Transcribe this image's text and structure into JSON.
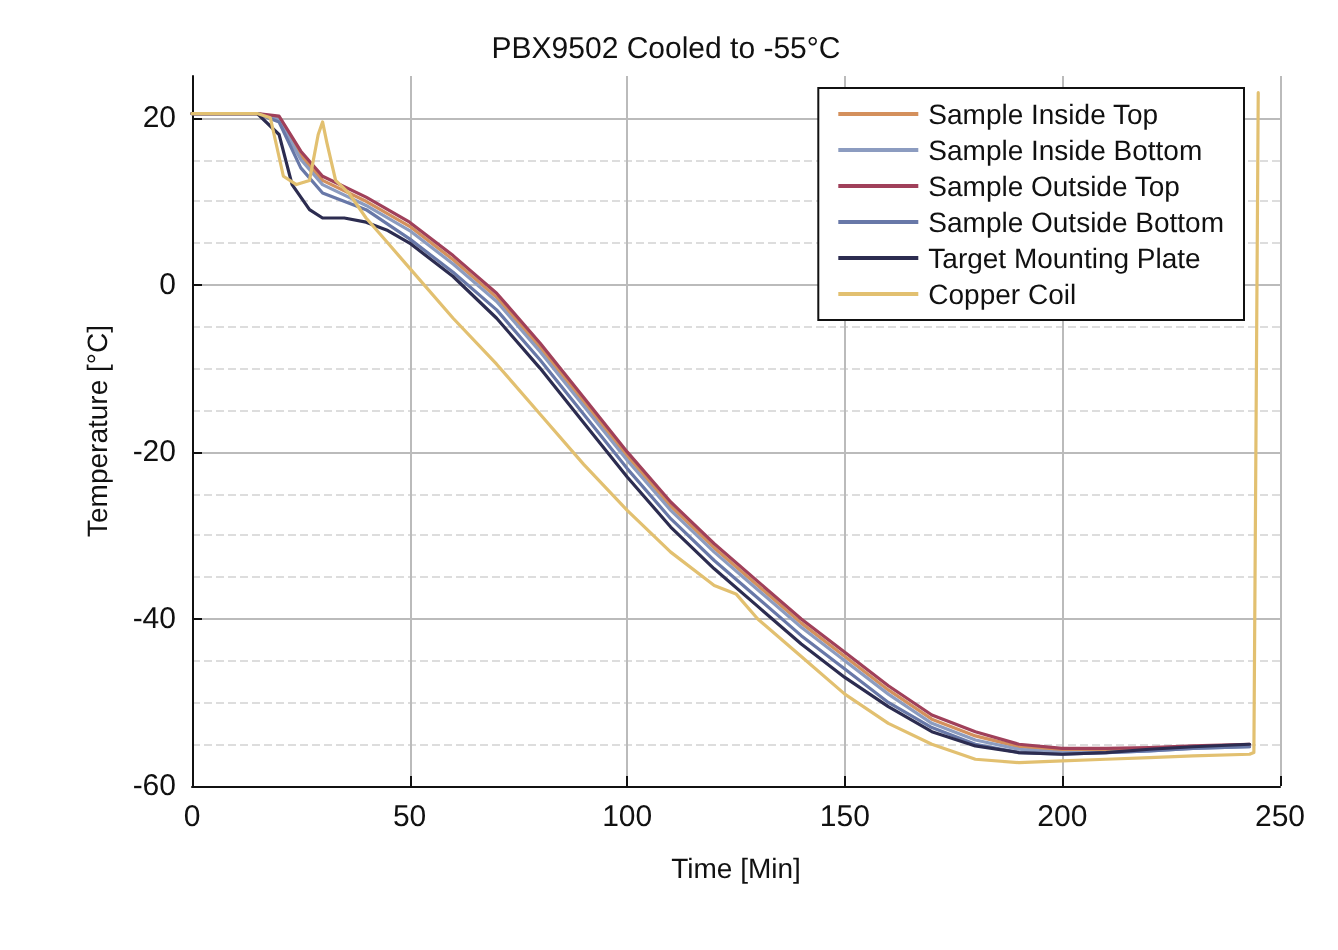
{
  "chart_data": {
    "type": "line",
    "title": "PBX9502 Cooled to -55°C",
    "xlabel": "Time [Min]",
    "ylabel": "Temperature [°C]",
    "xlim": [
      0,
      250
    ],
    "xticks": [
      0,
      50,
      100,
      150,
      200,
      250
    ],
    "ylim": [
      -60,
      25
    ],
    "yticks": [
      -60,
      -40,
      -20,
      0,
      20
    ],
    "grid": true,
    "legend": "top right",
    "line_style": "solid",
    "marker": "none",
    "series": [
      {
        "name": "Sample Inside Top",
        "color": "#d4905c",
        "x": [
          0,
          15,
          20,
          25,
          30,
          40,
          50,
          60,
          70,
          80,
          90,
          100,
          110,
          120,
          130,
          140,
          150,
          160,
          170,
          180,
          190,
          200,
          210,
          220,
          230,
          243
        ],
        "values": [
          20.5,
          20.5,
          20,
          15.5,
          12.5,
          10,
          7,
          3,
          -1.5,
          -7.5,
          -14,
          -20.5,
          -26.5,
          -31.5,
          -36,
          -40.5,
          -44.5,
          -48.5,
          -52,
          -54,
          -55.3,
          -55.7,
          -55.7,
          -55.6,
          -55.4,
          -55.2
        ]
      },
      {
        "name": "Sample Inside Bottom",
        "color": "#8c9cc0",
        "x": [
          0,
          15,
          20,
          25,
          30,
          40,
          50,
          60,
          70,
          80,
          90,
          100,
          110,
          120,
          130,
          140,
          150,
          160,
          170,
          180,
          190,
          200,
          210,
          220,
          230,
          243
        ],
        "values": [
          20.5,
          20.5,
          19.8,
          15,
          12,
          9.5,
          6.5,
          2.5,
          -2,
          -8,
          -14.5,
          -21,
          -27,
          -32,
          -36.5,
          -41,
          -45,
          -49,
          -52.5,
          -54.5,
          -55.6,
          -56,
          -56,
          -55.8,
          -55.5,
          -55.3
        ]
      },
      {
        "name": "Sample Outside Top",
        "color": "#a0405a",
        "x": [
          0,
          15,
          20,
          25,
          30,
          40,
          50,
          60,
          70,
          80,
          90,
          100,
          110,
          120,
          130,
          140,
          150,
          160,
          170,
          180,
          190,
          200,
          210,
          220,
          230,
          243
        ],
        "values": [
          20.5,
          20.5,
          20.2,
          16,
          13,
          10.5,
          7.5,
          3.5,
          -1,
          -7,
          -13.5,
          -20,
          -26,
          -31,
          -35.5,
          -40,
          -44,
          -48,
          -51.5,
          -53.5,
          -55,
          -55.5,
          -55.5,
          -55.4,
          -55.2,
          -55
        ]
      },
      {
        "name": "Sample Outside Bottom",
        "color": "#6878a8",
        "x": [
          0,
          15,
          20,
          25,
          30,
          40,
          50,
          60,
          70,
          80,
          90,
          100,
          110,
          120,
          130,
          140,
          150,
          160,
          170,
          180,
          190,
          200,
          210,
          220,
          230,
          243
        ],
        "values": [
          20.5,
          20.5,
          19.5,
          14,
          11,
          9,
          5.5,
          1.5,
          -3,
          -9,
          -15.5,
          -22,
          -28,
          -33,
          -37.5,
          -42,
          -46,
          -50,
          -53,
          -55,
          -56,
          -56.2,
          -56,
          -55.8,
          -55.5,
          -55.3
        ]
      },
      {
        "name": "Target Mounting Plate",
        "color": "#2c2c50",
        "x": [
          0,
          15,
          20,
          23,
          27,
          30,
          35,
          40,
          45,
          50,
          60,
          70,
          80,
          90,
          100,
          110,
          120,
          130,
          140,
          150,
          160,
          170,
          180,
          190,
          200,
          210,
          220,
          230,
          243
        ],
        "values": [
          20.5,
          20.5,
          18,
          12,
          9,
          8,
          8,
          7.5,
          6.5,
          5,
          1,
          -4,
          -10,
          -16.5,
          -23,
          -29,
          -34,
          -38.5,
          -43,
          -47,
          -50.5,
          -53.5,
          -55.2,
          -56,
          -56.2,
          -56,
          -55.6,
          -55.3,
          -55
        ]
      },
      {
        "name": "Copper Coil",
        "color": "#e2c070",
        "x": [
          0,
          15,
          18,
          21,
          24,
          27,
          29,
          30,
          31,
          33,
          36,
          40,
          45,
          50,
          60,
          70,
          80,
          90,
          100,
          110,
          120,
          125,
          130,
          140,
          150,
          160,
          170,
          180,
          190,
          200,
          210,
          220,
          230,
          243,
          244,
          245
        ],
        "values": [
          20.5,
          20.5,
          20,
          13,
          12,
          12.5,
          18,
          19.5,
          17,
          12.5,
          11,
          8,
          5,
          2,
          -4,
          -9.5,
          -15.5,
          -21.5,
          -27,
          -32,
          -36,
          -37,
          -40,
          -44.5,
          -49,
          -52.5,
          -55,
          -56.8,
          -57.2,
          -57,
          -56.8,
          -56.6,
          -56.4,
          -56.2,
          -56,
          23
        ]
      }
    ]
  }
}
